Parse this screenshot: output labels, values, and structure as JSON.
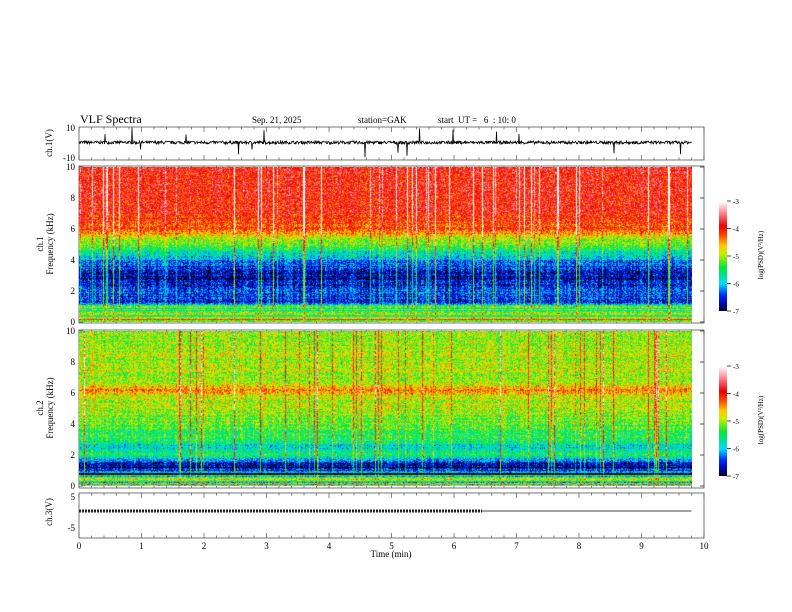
{
  "header": {
    "title": "VLF Spectra",
    "date": "Sep. 21, 2025",
    "station": "station=GAK",
    "start": "start  UT =   6  : 10: 0"
  },
  "chart_data": [
    {
      "type": "line",
      "name": "ch1-waveform",
      "ylabel": "ch.1(V)",
      "ylim": [
        -10,
        10
      ],
      "yticks": [
        "10",
        "-10"
      ],
      "xlim": [
        0,
        10
      ],
      "data_end_min": 9.8,
      "baseline": 0,
      "noise_amplitude": 2
    },
    {
      "type": "heatmap",
      "name": "ch1-spectrogram",
      "ylabel": "ch.1\nFrequency (kHz)",
      "ylabel_lines": [
        "ch.1",
        "Frequency (kHz)"
      ],
      "ylim": [
        0,
        10
      ],
      "yticks": [
        "0",
        "2",
        "4",
        "6",
        "8",
        "10"
      ],
      "xlim": [
        0,
        10
      ],
      "profile": {
        "freq_khz": [
          0,
          0.5,
          1,
          1.2,
          2,
          3,
          4,
          4.5,
          5,
          5.5,
          6,
          7,
          8,
          10
        ],
        "log_psd": [
          -4.5,
          -4.8,
          -5.0,
          -6.5,
          -6.4,
          -6.7,
          -6.2,
          -5.7,
          -5.2,
          -4.8,
          -4.2,
          -4.0,
          -3.9,
          -3.9
        ]
      },
      "colorbar": {
        "label": "log(PSD)(V²/Hz)",
        "range": [
          -7,
          -3
        ],
        "ticks": [
          "-3",
          "-4",
          "-5",
          "-6",
          "-7"
        ]
      }
    },
    {
      "type": "heatmap",
      "name": "ch2-spectrogram",
      "ylabel_lines": [
        "ch.2",
        "Frequency (kHz)"
      ],
      "ylim": [
        0,
        10
      ],
      "yticks": [
        "0",
        "2",
        "4",
        "6",
        "8",
        "10"
      ],
      "xlim": [
        0,
        10
      ],
      "profile": {
        "freq_khz": [
          0,
          0.5,
          1,
          1.5,
          2,
          2.5,
          3,
          4,
          5,
          5.8,
          6.2,
          6.6,
          8,
          10
        ],
        "log_psd": [
          -5.2,
          -5.5,
          -6.8,
          -6.6,
          -5.5,
          -5.9,
          -5.5,
          -5.2,
          -5.0,
          -4.9,
          -4.4,
          -4.9,
          -5.0,
          -5.0
        ]
      },
      "colorbar": {
        "label": "log(PSD)(V²/Hz)",
        "range": [
          -7,
          -3
        ],
        "ticks": [
          "-3",
          "-4",
          "-5",
          "-6",
          "-7"
        ]
      }
    },
    {
      "type": "line",
      "name": "ch3-level",
      "ylabel": "ch.3(V)",
      "ylim": [
        -5,
        5
      ],
      "yticks": [
        "5",
        "-5"
      ],
      "xlim": [
        0,
        10
      ],
      "value": 0,
      "marked_until_min": 6.45,
      "data_end_min": 9.8
    }
  ],
  "xaxis": {
    "label": "Time  (min)",
    "ticks": [
      "0",
      "1",
      "2",
      "3",
      "4",
      "5",
      "6",
      "7",
      "8",
      "9",
      "10"
    ]
  }
}
